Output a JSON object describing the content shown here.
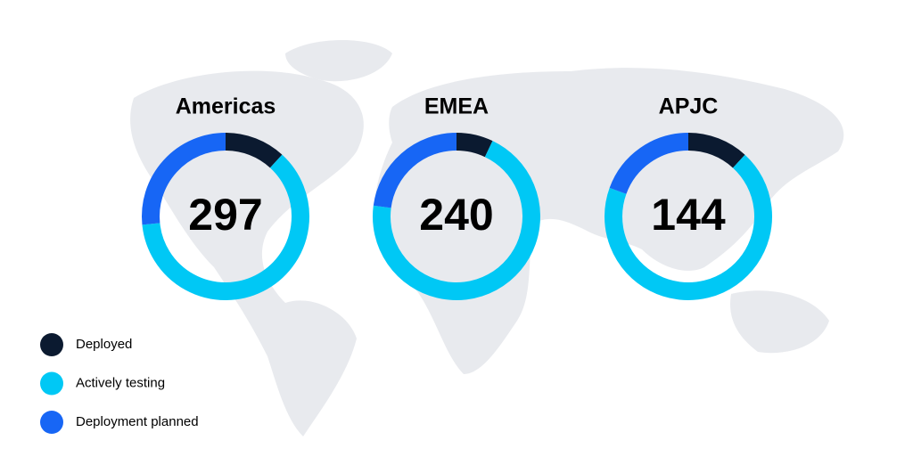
{
  "chart_data": [
    {
      "type": "donut",
      "title": "Americas",
      "total": 297,
      "values": [
        35,
        183,
        79
      ]
    },
    {
      "type": "donut",
      "title": "EMEA",
      "total": 240,
      "values": [
        17,
        168,
        55
      ]
    },
    {
      "type": "donut",
      "title": "APJC",
      "total": 144,
      "values": [
        17,
        99,
        28
      ]
    }
  ],
  "legend": {
    "categories": [
      "Deployed",
      "Actively testing",
      "Deployment planned"
    ],
    "colors": [
      "#0b1a30",
      "#00c8f5",
      "#1766f5"
    ]
  }
}
